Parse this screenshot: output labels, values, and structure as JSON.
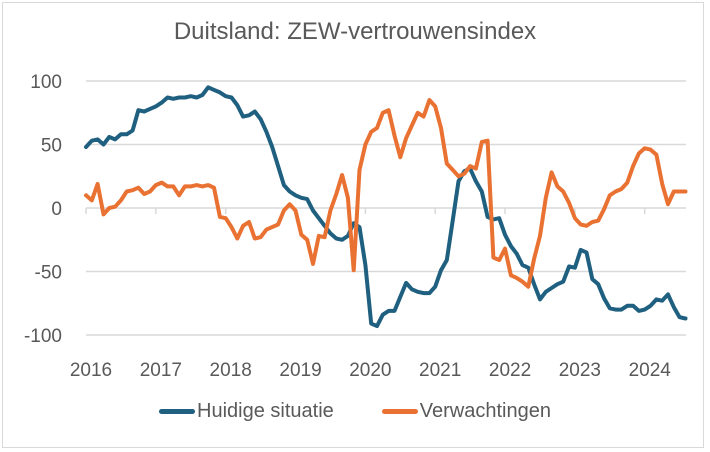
{
  "chart_data": {
    "type": "line",
    "title": "Duitsland: ZEW-vertrouwensindex",
    "xlabel": "",
    "ylabel": "",
    "ylim": [
      -100,
      100
    ],
    "y_ticks": [
      "100",
      "50",
      "0",
      "-50",
      "-100"
    ],
    "y_tick_values": [
      100,
      50,
      0,
      -50,
      -100
    ],
    "x_tick_labels": [
      "2016",
      "2017",
      "2018",
      "2019",
      "2020",
      "2021",
      "2022",
      "2023",
      "2024"
    ],
    "x_start": "2016-01",
    "frequency": "monthly",
    "grid": true,
    "legend_position": "bottom",
    "series": [
      {
        "name": "Huidige situatie",
        "color": "#1f5f7f",
        "values": [
          48,
          53,
          54,
          50,
          56,
          54,
          58,
          58,
          61,
          77,
          76,
          78,
          80,
          83,
          87,
          86,
          87,
          87,
          88,
          87,
          89,
          95,
          93,
          91,
          88,
          87,
          81,
          72,
          73,
          76,
          70,
          60,
          48,
          33,
          18,
          13,
          10,
          8,
          7,
          -2,
          -8,
          -14,
          -20,
          -24,
          -25,
          -22,
          -12,
          -15,
          -45,
          -91,
          -93,
          -84,
          -81,
          -81,
          -70,
          -59,
          -64,
          -66,
          -67,
          -67,
          -62,
          -49,
          -41,
          -10,
          21,
          29,
          31,
          21,
          13,
          -7,
          -9,
          -8,
          -21,
          -30,
          -36,
          -45,
          -47,
          -60,
          -72,
          -66,
          -63,
          -60,
          -58,
          -46,
          -47,
          -33,
          -35,
          -56,
          -60,
          -71,
          -79,
          -80,
          -80,
          -77,
          -77,
          -81,
          -80,
          -77,
          -72,
          -73,
          -68,
          -78,
          -86,
          -87
        ]
      },
      {
        "name": "Verwachtingen",
        "color": "#e97132",
        "values": [
          10,
          6,
          19,
          -5,
          0,
          1,
          6,
          13,
          14,
          16,
          11,
          13,
          18,
          20,
          17,
          17,
          10,
          17,
          17,
          18,
          17,
          18,
          16,
          -7,
          -8,
          -15,
          -24,
          -14,
          -11,
          -24,
          -23,
          -17,
          -15,
          -13,
          -2,
          3,
          -2,
          -21,
          -25,
          -44,
          -22,
          -23,
          -2,
          11,
          26,
          8,
          -49,
          30,
          50,
          60,
          63,
          75,
          77,
          57,
          40,
          55,
          65,
          75,
          72,
          85,
          80,
          63,
          35,
          30,
          25,
          27,
          33,
          31,
          52,
          53,
          -39,
          -41,
          -32,
          -53,
          -55,
          -58,
          -62,
          -40,
          -22,
          8,
          28,
          17,
          13,
          4,
          -8,
          -13,
          -14,
          -11,
          -10,
          -1,
          10,
          13,
          15,
          20,
          33,
          43,
          47,
          46,
          42,
          19,
          3,
          13,
          13,
          13
        ]
      }
    ]
  }
}
